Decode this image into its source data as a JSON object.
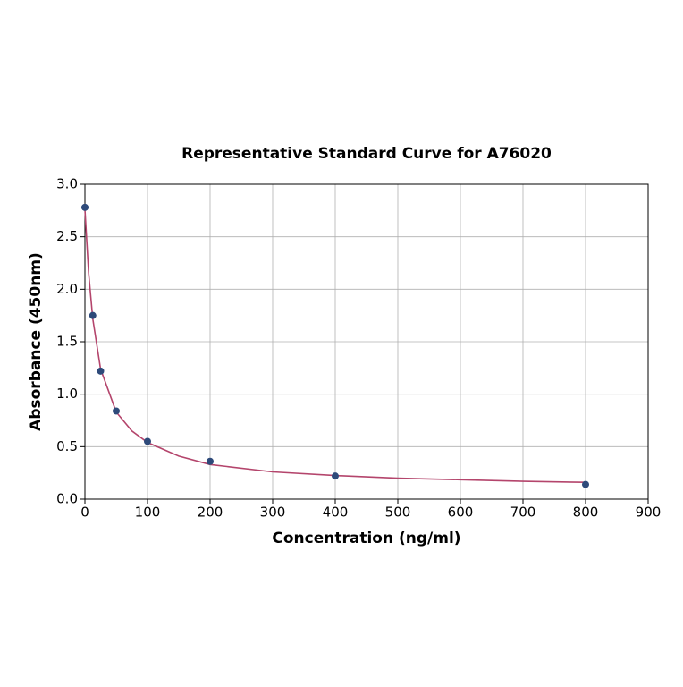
{
  "chart_data": {
    "type": "scatter",
    "title": "Representative Standard Curve for A76020",
    "x_label": "Concentration (ng/ml)",
    "y_label": "Absorbance (450nm)",
    "xlim": [
      0,
      900
    ],
    "ylim": [
      0,
      3.0
    ],
    "xticks": [
      0,
      100,
      200,
      300,
      400,
      500,
      600,
      700,
      800,
      900
    ],
    "yticks": [
      {
        "value": 0,
        "label": "0.0"
      },
      0.5,
      {
        "value": 1,
        "label": "1.0"
      },
      1.5,
      {
        "value": 2,
        "label": "2.0"
      },
      2.5,
      {
        "value": 3,
        "label": "3.0"
      }
    ],
    "grid": true,
    "series": [
      {
        "style": "line",
        "color": "#b4456c",
        "x": [
          0,
          3,
          6,
          12.5,
          25,
          50,
          75,
          100,
          150,
          200,
          300,
          400,
          500,
          600,
          700,
          800
        ],
        "values": [
          2.76,
          2.45,
          2.15,
          1.72,
          1.24,
          0.83,
          0.65,
          0.54,
          0.41,
          0.33,
          0.26,
          0.225,
          0.2,
          0.185,
          0.17,
          0.16
        ]
      },
      {
        "style": "markers",
        "color": "#2e4a7a",
        "x": [
          0,
          12.5,
          25,
          50,
          100,
          200,
          400,
          800
        ],
        "values": [
          2.78,
          1.75,
          1.22,
          0.84,
          0.55,
          0.36,
          0.22,
          0.14
        ]
      }
    ]
  }
}
